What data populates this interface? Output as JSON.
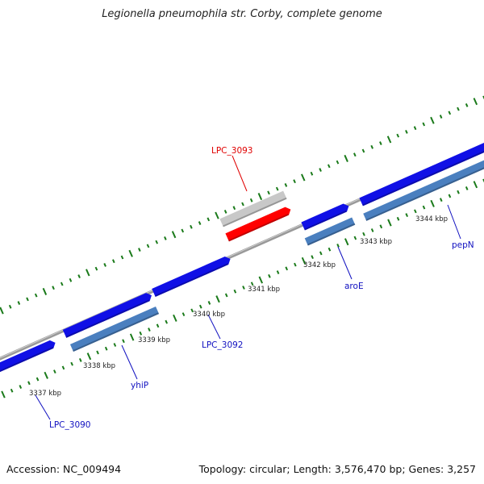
{
  "title": "Legionella pneumophila str. Corby, complete genome",
  "footer": {
    "accession": "Accession: NC_009494",
    "topology": "Topology: circular; Length: 3,576,470 bp; Genes: 3,257"
  },
  "colors": {
    "backbone": "#8c8c8c",
    "tick": "#1a7a1a",
    "cds_forward": "#1010e6",
    "gene_forward": "#4a7fbf",
    "highlight": "#ff0000",
    "highlight_gene": "#c8c8c8",
    "label_blue": "#1010c0",
    "label_red": "#e00000"
  },
  "scale_labels": [
    {
      "text": "3337 kbp",
      "kbp": 3337
    },
    {
      "text": "3338 kbp",
      "kbp": 3338
    },
    {
      "text": "3339 kbp",
      "kbp": 3339
    },
    {
      "text": "3340 kbp",
      "kbp": 3340
    },
    {
      "text": "3341 kbp",
      "kbp": 3341
    },
    {
      "text": "3342 kbp",
      "kbp": 3342
    },
    {
      "text": "3343 kbp",
      "kbp": 3343
    },
    {
      "text": "3344 kbp",
      "kbp": 3344
    }
  ],
  "feature_labels": [
    {
      "text": "LPC_3090",
      "color": "blue"
    },
    {
      "text": "yhiP",
      "color": "blue"
    },
    {
      "text": "LPC_3092",
      "color": "blue"
    },
    {
      "text": "aroE",
      "color": "blue"
    },
    {
      "text": "pepN",
      "color": "blue"
    },
    {
      "text": "LPC_3093",
      "color": "red"
    }
  ]
}
